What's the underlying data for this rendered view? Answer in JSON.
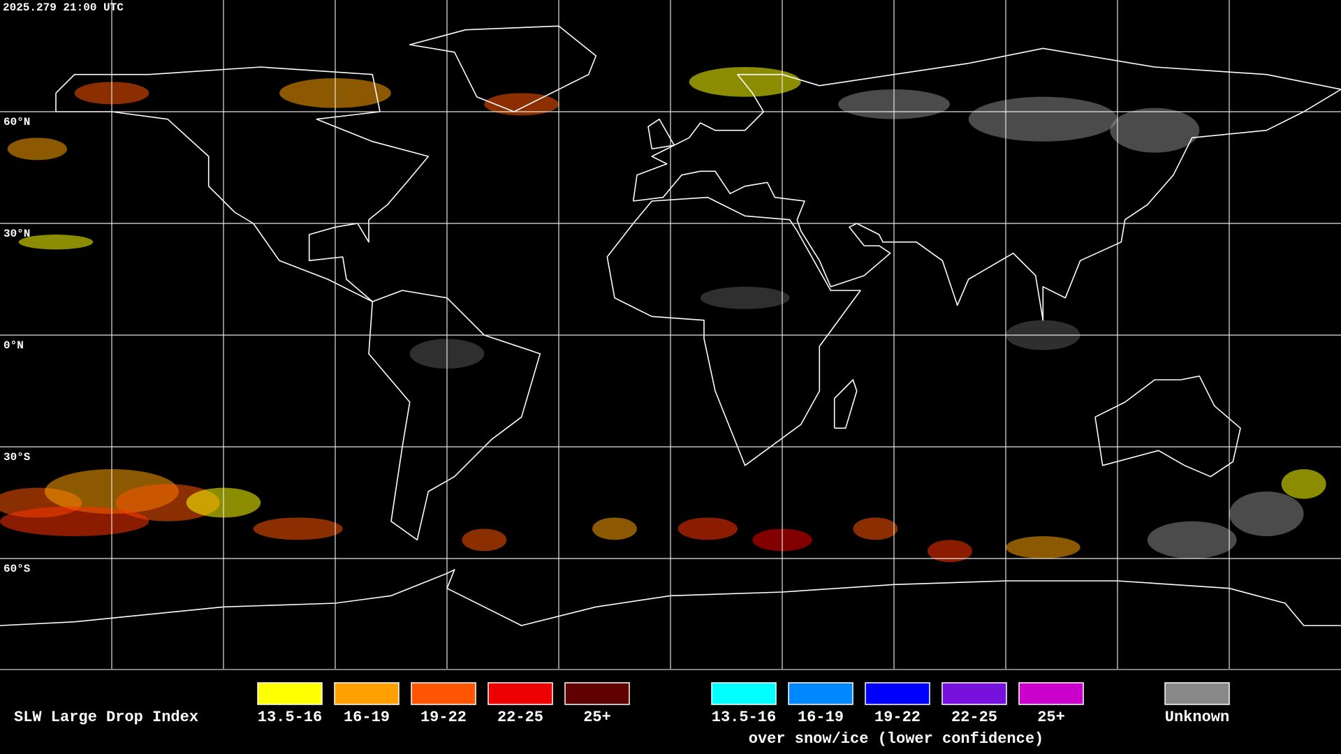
{
  "header": {
    "timestamp": "2025.279 21:00 UTC"
  },
  "map": {
    "latitude_labels": [
      "60°N",
      "30°N",
      "0°N",
      "30°S",
      "60°S"
    ]
  },
  "legend": {
    "title": "SLW Large Drop Index",
    "items": [
      {
        "label": "13.5-16",
        "color": "#ffff00"
      },
      {
        "label": "16-19",
        "color": "#ffa000"
      },
      {
        "label": "19-22",
        "color": "#ff5500"
      },
      {
        "label": "22-25",
        "color": "#ee0000"
      },
      {
        "label": "25+",
        "color": "#600000"
      }
    ],
    "snow_items": [
      {
        "label": "13.5-16",
        "color": "#00ffff"
      },
      {
        "label": "16-19",
        "color": "#0088ff"
      },
      {
        "label": "19-22",
        "color": "#0000ff"
      },
      {
        "label": "22-25",
        "color": "#7711dd"
      },
      {
        "label": "25+",
        "color": "#cc00cc"
      }
    ],
    "snow_note": "over snow/ice (lower confidence)",
    "unknown": {
      "label": "Unknown",
      "color": "#888888"
    }
  }
}
